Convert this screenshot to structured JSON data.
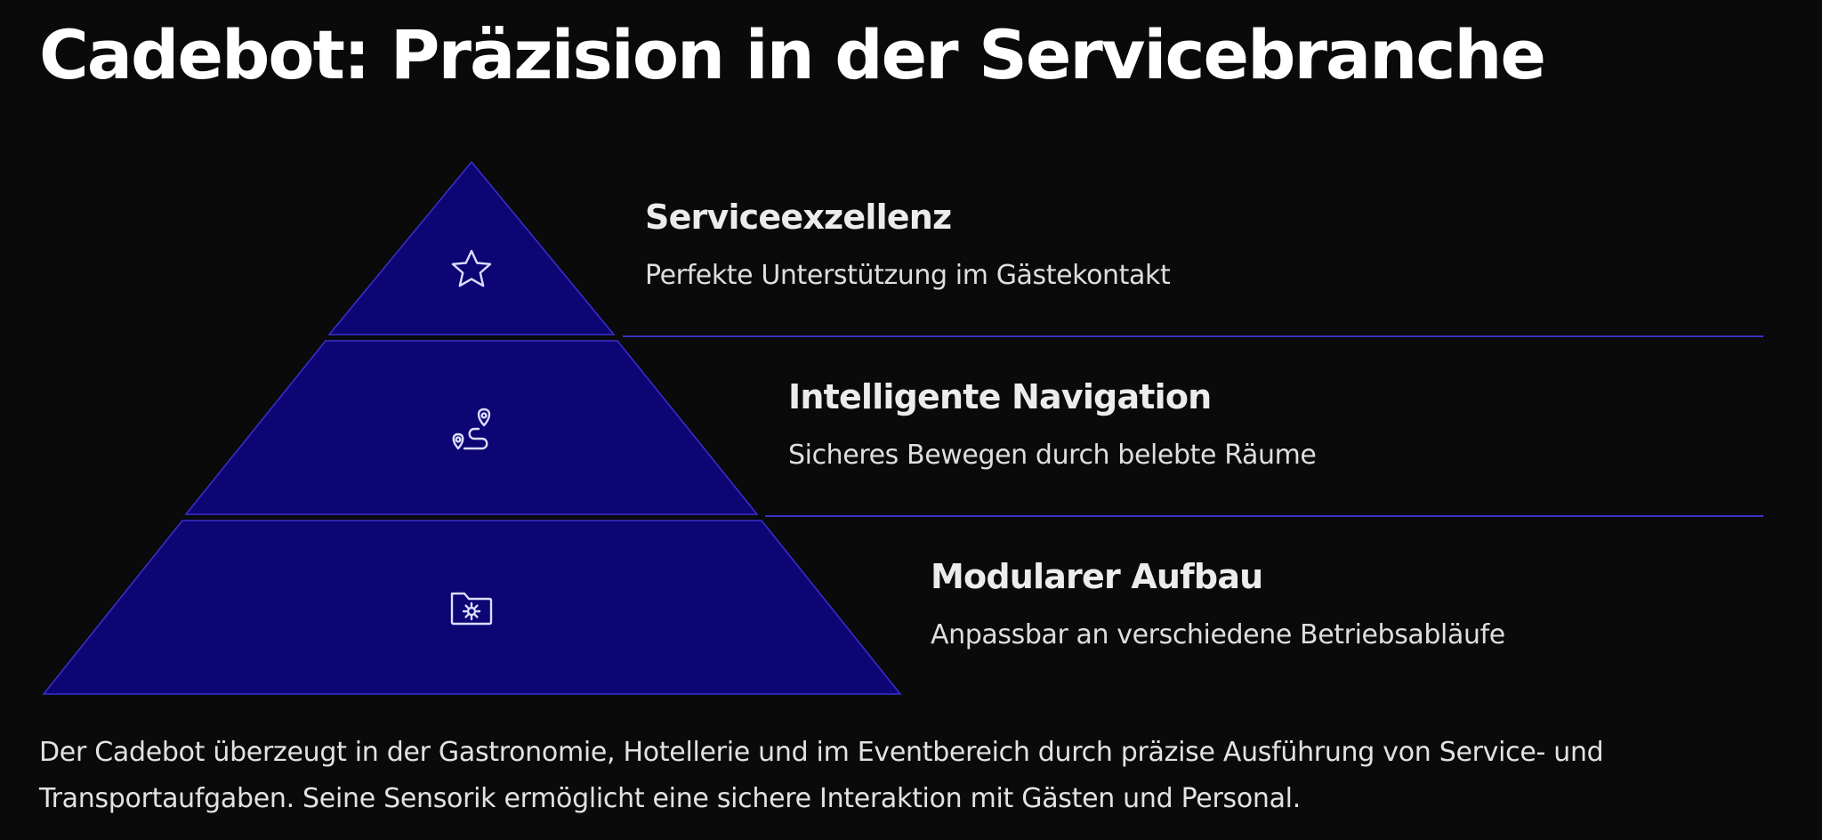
{
  "title": "Cadebot: Präzision in der Servicebranche",
  "colors": {
    "background": "#0a0a0a",
    "tier_fill": "#0d0574",
    "tier_stroke": "#3a2fd0",
    "divider": "#3b31c4",
    "icon": "#dcdcff"
  },
  "tiers": [
    {
      "icon": "star-icon",
      "heading": "Serviceexzellenz",
      "description": "Perfekte Unterstützung im Gästekontakt"
    },
    {
      "icon": "route-icon",
      "heading": "Intelligente Navigation",
      "description": "Sicheres Bewegen durch belebte Räume"
    },
    {
      "icon": "folder-cog-icon",
      "heading": "Modularer Aufbau",
      "description": "Anpassbar an verschiedene Betriebsabläufe"
    }
  ],
  "summary": "Der Cadebot überzeugt in der Gastronomie, Hotellerie und im Eventbereich durch präzise Ausführung von Service- und Transportaufgaben. Seine Sensorik ermöglicht eine sichere Interaktion mit Gästen und Personal."
}
